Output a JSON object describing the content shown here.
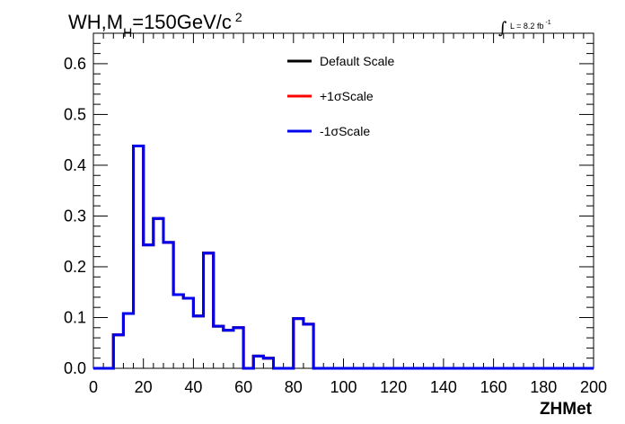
{
  "chart_data": {
    "type": "histogram-step",
    "title": {
      "main": "WH,M",
      "sub": "H",
      "rest": "=150GeV/c",
      "sup": "2"
    },
    "lumi": {
      "text": "L = 8.2 fb",
      "sup": "-1"
    },
    "xlabel": "ZHMet",
    "ylabel": "",
    "xlim": [
      0,
      200
    ],
    "ylim": [
      0,
      0.66
    ],
    "x_ticks": [
      0,
      20,
      40,
      60,
      80,
      100,
      120,
      140,
      160,
      180,
      200
    ],
    "y_ticks": [
      0.0,
      0.1,
      0.2,
      0.3,
      0.4,
      0.5,
      0.6
    ],
    "x_tick_labels": [
      "0",
      "20",
      "40",
      "60",
      "80",
      "100",
      "120",
      "140",
      "160",
      "180",
      "200"
    ],
    "y_tick_labels": [
      "0.0",
      "0.1",
      "0.2",
      "0.3",
      "0.4",
      "0.5",
      "0.6"
    ],
    "legend_position": "top-center",
    "bin_edges": [
      0,
      4,
      8,
      12,
      16,
      20,
      24,
      28,
      32,
      36,
      40,
      44,
      48,
      52,
      56,
      60,
      64,
      68,
      72,
      76,
      80,
      84,
      88,
      92,
      96,
      100,
      104,
      108,
      112,
      116,
      120,
      124,
      128,
      132,
      136,
      140,
      144,
      148,
      152,
      156,
      160,
      164,
      168,
      172,
      176,
      180,
      184,
      188,
      192,
      196,
      200
    ],
    "series": [
      {
        "name": "Default Scale",
        "color": "#000000",
        "values": [
          0,
          0,
          0.066,
          0.108,
          0.438,
          0.243,
          0.295,
          0.248,
          0.145,
          0.138,
          0.103,
          0.227,
          0.083,
          0.075,
          0.08,
          0,
          0.024,
          0.02,
          0,
          0,
          0.098,
          0.087,
          0,
          0,
          0,
          0,
          0,
          0,
          0,
          0,
          0,
          0,
          0,
          0,
          0,
          0,
          0,
          0,
          0,
          0,
          0,
          0,
          0,
          0,
          0,
          0,
          0,
          0,
          0,
          0
        ]
      },
      {
        "name": "+1σScale",
        "color": "#ff0000",
        "values": [
          0,
          0,
          0.066,
          0.108,
          0.438,
          0.243,
          0.295,
          0.248,
          0.145,
          0.138,
          0.103,
          0.227,
          0.083,
          0.075,
          0.08,
          0,
          0.024,
          0.02,
          0,
          0,
          0.098,
          0.087,
          0,
          0,
          0,
          0,
          0,
          0,
          0,
          0,
          0,
          0,
          0,
          0,
          0,
          0,
          0,
          0,
          0,
          0,
          0,
          0,
          0,
          0,
          0,
          0,
          0,
          0,
          0,
          0
        ]
      },
      {
        "name": "-1σScale",
        "color": "#0000ee",
        "values": [
          0,
          0,
          0.066,
          0.108,
          0.438,
          0.243,
          0.295,
          0.248,
          0.145,
          0.138,
          0.103,
          0.227,
          0.083,
          0.075,
          0.08,
          0,
          0.024,
          0.02,
          0,
          0,
          0.098,
          0.087,
          0,
          0,
          0,
          0,
          0,
          0,
          0,
          0,
          0,
          0,
          0,
          0,
          0,
          0,
          0,
          0,
          0,
          0,
          0,
          0,
          0,
          0,
          0,
          0,
          0,
          0,
          0,
          0
        ]
      }
    ]
  }
}
